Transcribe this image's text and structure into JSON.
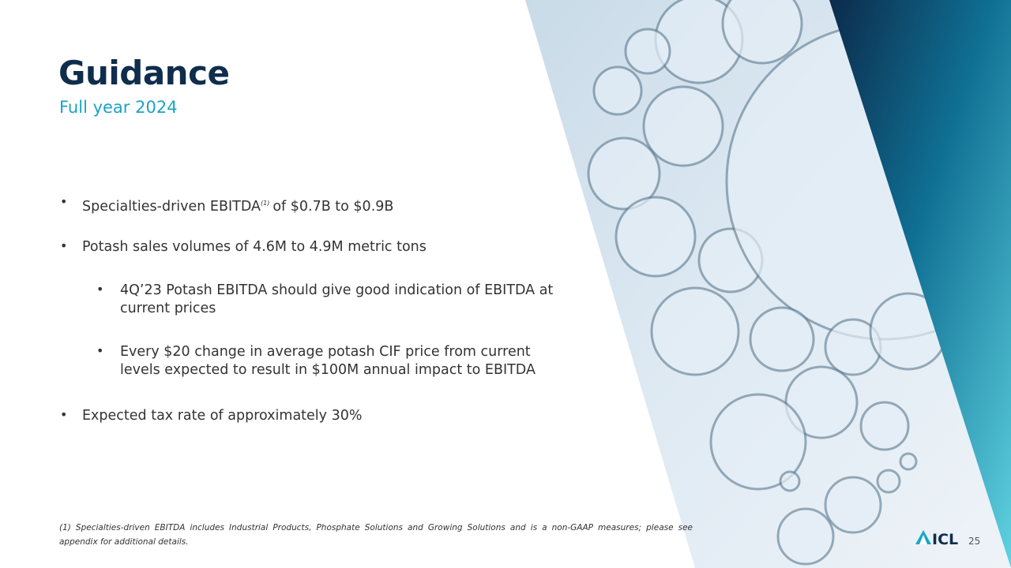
{
  "header": {
    "title": "Guidance",
    "subtitle": "Full year 2024"
  },
  "bullets": [
    {
      "text": "Specialties-driven EBITDA",
      "sup": "(1)",
      "text_after": "of $0.7B to $0.9B",
      "level": 1
    },
    {
      "text": "Potash sales volumes of 4.6M to 4.9M metric tons",
      "level": 1
    },
    {
      "text": "4Q’23 Potash EBITDA should give good indication of EBITDA at current prices",
      "level": 2
    },
    {
      "text": "Every $20 change in average potash CIF price from current levels expected to result in $100M annual impact to EBITDA",
      "level": 2
    },
    {
      "text": "Expected tax rate of approximately 30%",
      "level": 1
    }
  ],
  "footnote": "(1) Specialties-driven EBITDA includes Industrial Products, Phosphate Solutions and Growing Solutions and is a non-GAAP measures; please see appendix for additional details.",
  "footer": {
    "logo": "ICL",
    "page_number": "25"
  }
}
